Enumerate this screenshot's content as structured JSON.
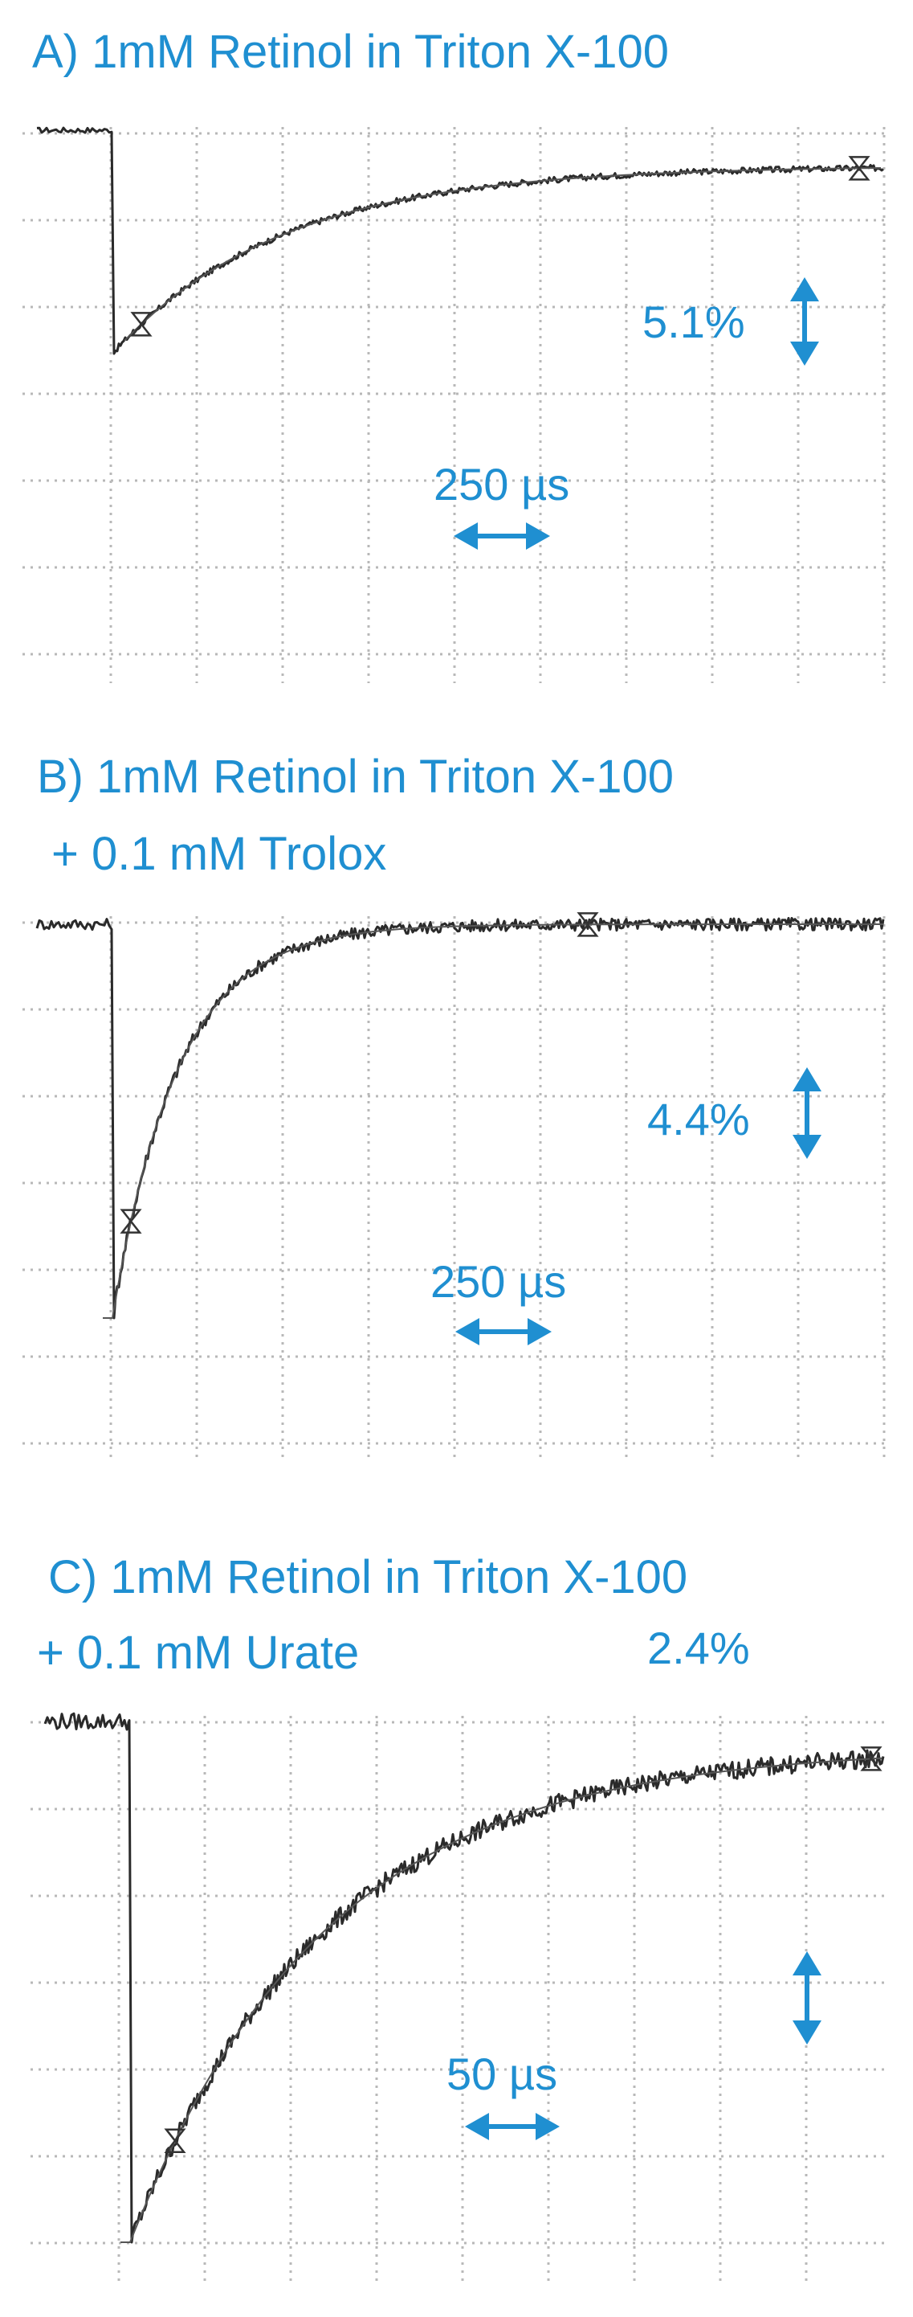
{
  "chart_data": [
    {
      "type": "line",
      "title": "A) 1mM Retinol in Triton X-100",
      "subtitle": "",
      "amplitude_label": "5.1%",
      "time_label": "250 µs",
      "grid": true,
      "baseline": 0,
      "drop": -1.0,
      "recovery_fraction": 0.84,
      "tau": 2.2,
      "noise": 0.012,
      "x_range": [
        0,
        10
      ],
      "y_range": [
        -1.25,
        0.2
      ]
    },
    {
      "type": "line",
      "title": "B) 1mM Retinol in  Triton X-100",
      "subtitle": "+ 0.1 mM Trolox",
      "amplitude_label": "4.4%",
      "time_label": "250 µs",
      "grid": true,
      "baseline": 0,
      "drop": -1.0,
      "recovery_fraction": 1.0,
      "tau": 0.85,
      "noise": 0.014,
      "x_range": [
        0,
        10
      ],
      "y_range": [
        -1.15,
        0.2
      ]
    },
    {
      "type": "line",
      "title": "C) 1mM Retinol in Triton X-100",
      "subtitle": "+ 0.1 mM Urate",
      "amplitude_label": "2.4%",
      "time_label": "50 µs",
      "grid": true,
      "baseline": 0,
      "drop": -1.0,
      "recovery_fraction": 0.95,
      "tau": 2.6,
      "noise": 0.016,
      "x_range": [
        0,
        10
      ],
      "y_range": [
        -1.12,
        0.12
      ]
    }
  ]
}
